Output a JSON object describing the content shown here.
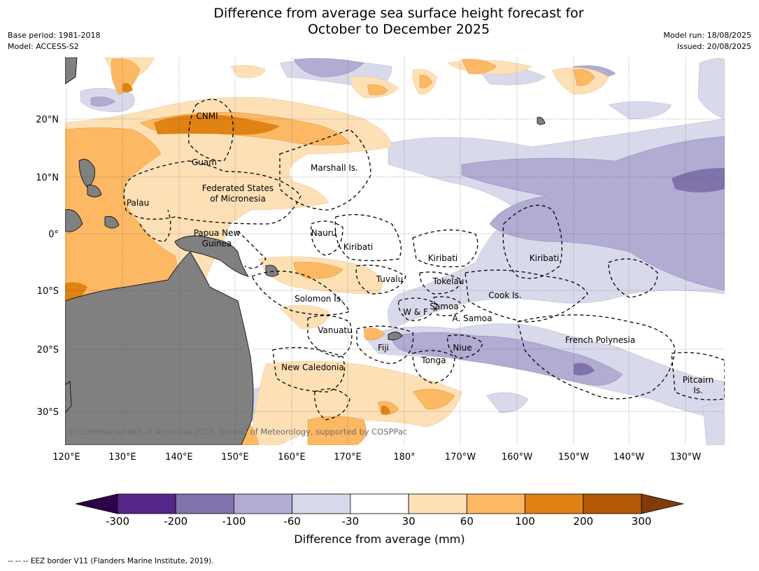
{
  "title_line1": "Difference from average sea surface height forecast for",
  "title_line2": "October to December 2025",
  "base_period": "Base period: 1981-2018",
  "model": "Model: ACCESS-S2",
  "model_run": "Model run: 18/08/2025",
  "issued": "Issued: 20/08/2025",
  "lat_labels": [
    "20°N",
    "10°N",
    "0°",
    "10°S",
    "20°S",
    "30°S"
  ],
  "lon_labels": [
    "120°E",
    "130°E",
    "140°E",
    "150°E",
    "160°E",
    "170°E",
    "180°",
    "170°W",
    "160°W",
    "150°W",
    "140°W",
    "130°W"
  ],
  "region_labels": [
    "CNMI",
    "Guam",
    "Marshall Is.",
    "Federated States",
    "of Micronesia",
    "Palau",
    "Papua New",
    "Guinea",
    "Nauru",
    "Kiribati",
    "Kiribati",
    "Kiribati",
    "Tuvalu",
    "Tokelau",
    "Solomon Is.",
    "W & F",
    "Samoa",
    "A. Samoa",
    "Cook Is.",
    "Vanuatu",
    "Fiji",
    "Niue",
    "Tonga",
    "French Polynesia",
    "New Caledonia",
    "Pitcairn",
    "Is."
  ],
  "copyright": "© Commonwealth of Australia 2025, Bureau of Meteorology, supported by COSPPac",
  "colorbar": {
    "label": "Difference from average (mm)",
    "ticks": [
      "-300",
      "-200",
      "-100",
      "-60",
      "-30",
      "30",
      "60",
      "100",
      "200",
      "300"
    ],
    "colors": [
      "#2d004b",
      "#542788",
      "#8073ac",
      "#b2abd2",
      "#d8daeb",
      "#ffffff",
      "#fee0b6",
      "#fdb863",
      "#e08214",
      "#b35806",
      "#7f3b08"
    ]
  },
  "footer": "--  --  -- EEZ border V11 (Flanders Marine Institute, 2019)."
}
